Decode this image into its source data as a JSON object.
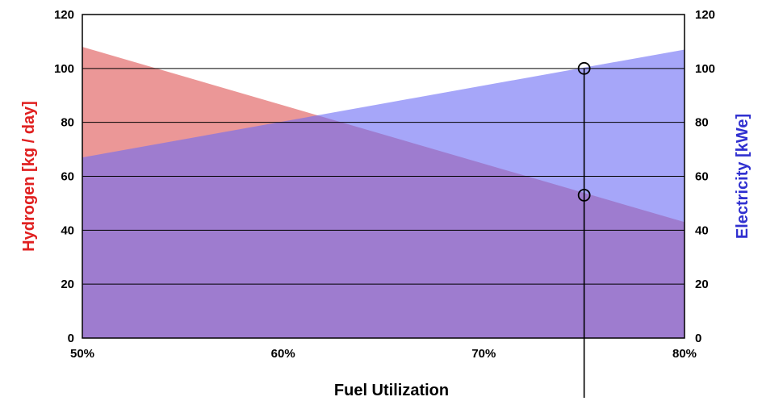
{
  "chart_data": {
    "type": "area",
    "xlabel": "Fuel Utilization",
    "ylabel_left": "Hydrogen [kg / day]",
    "ylabel_right": "Electricity [kWe]",
    "x_ticks": [
      "50%",
      "60%",
      "70%",
      "80%"
    ],
    "x": [
      0.5,
      0.8
    ],
    "xlim": [
      0.5,
      0.8
    ],
    "ylim_left": [
      0,
      120
    ],
    "ylim_right": [
      0,
      120
    ],
    "y_ticks_left": [
      "0",
      "20",
      "40",
      "60",
      "80",
      "100",
      "120"
    ],
    "y_ticks_right": [
      "0",
      "20",
      "40",
      "60",
      "80",
      "100",
      "120"
    ],
    "grid": true,
    "series": [
      {
        "name": "Hydrogen [kg / day]",
        "axis": "left",
        "values": [
          108,
          43
        ],
        "color": "#e06060"
      },
      {
        "name": "Electricity [kWe]",
        "axis": "right",
        "values": [
          67,
          107
        ],
        "color": "#6a6af5"
      }
    ],
    "annotations": {
      "marker_x": 0.75,
      "markers": [
        {
          "y": 100
        },
        {
          "y": 53
        }
      ]
    }
  }
}
